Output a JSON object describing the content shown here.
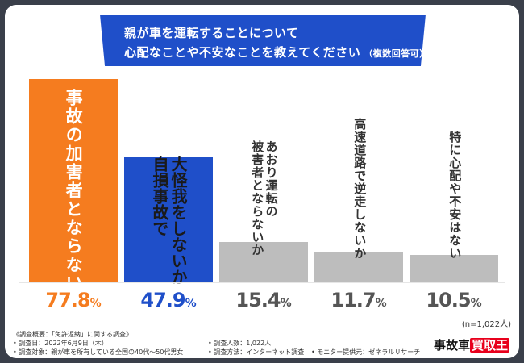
{
  "title": {
    "line1": "親が車を運転することについて",
    "line2": "心配なことや不安なことを教えてください",
    "note": "（複数回答可）"
  },
  "colors": {
    "orange": "#f57c1f",
    "blue": "#1f4fc9",
    "gray": "#bdbdbd",
    "gray_text": "#555555"
  },
  "chart_data": {
    "type": "bar",
    "title": "親が車を運転することについて 心配なことや不安なことを教えてください（複数回答可）",
    "categories": [
      "事故の加害者とならないか",
      "大怪我をしないか／自損事故で",
      "あおり運転の被害者とならないか",
      "高速道路で逆走しないか",
      "特に心配や不安はない"
    ],
    "values": [
      77.8,
      47.9,
      15.4,
      11.7,
      10.5
    ],
    "value_labels": [
      "77.8",
      "47.9",
      "15.4",
      "11.7",
      "10.5"
    ],
    "unit": "%",
    "ylim": [
      0,
      77.8
    ],
    "sample_size": "(n=1,022人)",
    "bars": [
      {
        "lines": [
          "事故の加害者とならないか"
        ],
        "color": "#f57c1f",
        "text_color": "#ffffff",
        "value_color": "#f57c1f"
      },
      {
        "lines": [
          "大怪我をしないか",
          "自損事故で"
        ],
        "color": "#1f4fc9",
        "text_color": "#1a1a1a",
        "value_color": "#1f4fc9"
      },
      {
        "lines": [
          "あおり運転の",
          "被害者とならないか"
        ],
        "color": "#bdbdbd",
        "text_color": "#333333",
        "value_color": "#555555"
      },
      {
        "lines": [
          "高速道路で逆走しないか"
        ],
        "color": "#bdbdbd",
        "text_color": "#333333",
        "value_color": "#555555"
      },
      {
        "lines": [
          "特に心配や不安はない"
        ],
        "color": "#bdbdbd",
        "text_color": "#333333",
        "value_color": "#555555"
      }
    ]
  },
  "footer": {
    "overview": "《調査概要：「免許返納」に関する調査》",
    "date": "• 調査日：2022年6月9日（木）",
    "target": "• 調査対象：親が車を所有している全国の40代～50代男女",
    "count": "• 調査人数：1,022人",
    "method": "• 調査方法：インターネット調査",
    "monitor": "• モニター提供元：ゼネラルリサーチ"
  },
  "logo": {
    "text_main": "事故車",
    "text_highlight": "買取王"
  }
}
